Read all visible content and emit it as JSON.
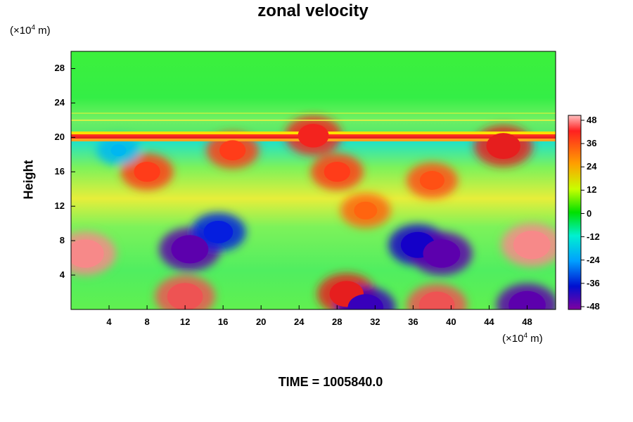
{
  "chart_data": {
    "type": "heatmap",
    "title": "zonal velocity",
    "ylabel": "Height",
    "y_unit": "(×10",
    "x_unit": "(×10",
    "unit_exp": "4",
    "unit_tail": " m)",
    "x_ticks": [
      "4",
      "8",
      "12",
      "16",
      "20",
      "24",
      "28",
      "32",
      "36",
      "40",
      "44",
      "48"
    ],
    "y_ticks": [
      "4",
      "8",
      "12",
      "16",
      "20",
      "24",
      "28"
    ],
    "xlim": [
      0,
      51
    ],
    "ylim": [
      0,
      30
    ],
    "colorbar_ticks": [
      "48",
      "36",
      "24",
      "12",
      "0",
      "-12",
      "-24",
      "-36",
      "-48"
    ],
    "colorbar_range": [
      -50,
      50
    ],
    "features": [
      {
        "x": 1.5,
        "y": 6.5,
        "value": 48
      },
      {
        "x": 12.5,
        "y": 7.0,
        "value": -48
      },
      {
        "x": 12.0,
        "y": 1.5,
        "value": 46
      },
      {
        "x": 29.0,
        "y": 1.8,
        "value": 44
      },
      {
        "x": 31.0,
        "y": 0.2,
        "value": -46
      },
      {
        "x": 36.5,
        "y": 7.5,
        "value": -44
      },
      {
        "x": 39.0,
        "y": 6.5,
        "value": -48
      },
      {
        "x": 38.5,
        "y": 0.5,
        "value": 46
      },
      {
        "x": 48.5,
        "y": 7.5,
        "value": 48
      },
      {
        "x": 48.0,
        "y": 0.5,
        "value": -48
      },
      {
        "x": 15.5,
        "y": 9.0,
        "value": -38
      },
      {
        "x": 8.0,
        "y": 16.0,
        "value": 34
      },
      {
        "x": 17.0,
        "y": 18.5,
        "value": 34
      },
      {
        "x": 28.0,
        "y": 16.0,
        "value": 34
      },
      {
        "x": 38.0,
        "y": 15.0,
        "value": 32
      },
      {
        "x": 45.5,
        "y": 19.0,
        "value": 44
      },
      {
        "x": 31.0,
        "y": 11.5,
        "value": 30
      },
      {
        "x": 25.5,
        "y": 20.2,
        "value": 40
      },
      {
        "x": 5.0,
        "y": 18.5,
        "value": -20
      }
    ]
  },
  "footer": {
    "time_label": "TIME = 1005840.0"
  }
}
